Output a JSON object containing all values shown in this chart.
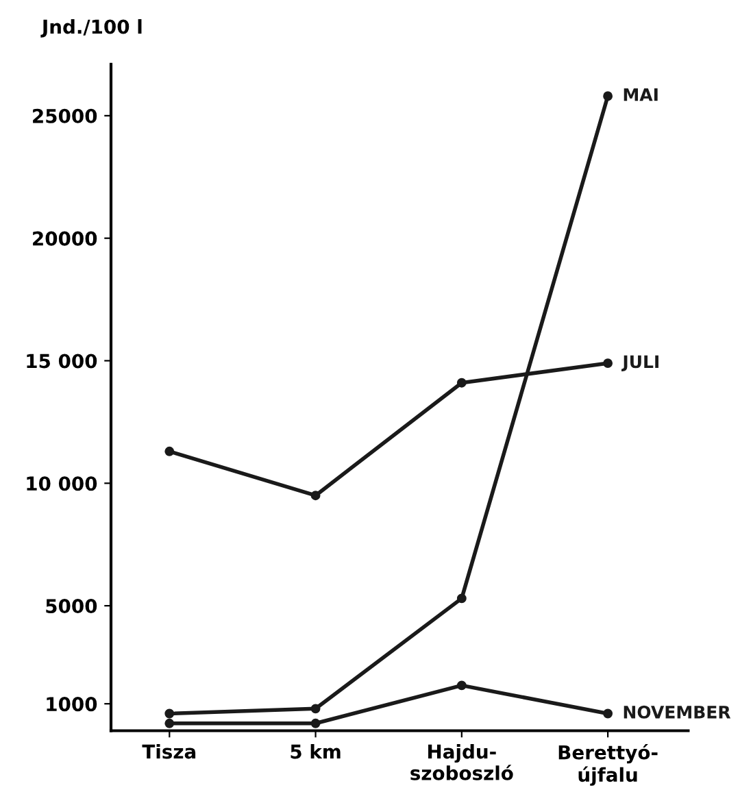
{
  "chart_data": {
    "type": "line",
    "ylabel": "Jnd./100 l",
    "categories": [
      "Tisza",
      "5 km",
      "Hajdu-\nszoboszló",
      "Berettyó-\nújfalu"
    ],
    "series": [
      {
        "name": "MAI",
        "color": "#1a1a1a",
        "values": [
          600,
          800,
          5300,
          25800
        ]
      },
      {
        "name": "JULI",
        "color": "#1a1a1a",
        "values": [
          11300,
          9500,
          14100,
          14900
        ]
      },
      {
        "name": "NOVEMBER",
        "color": "#1a1a1a",
        "values": [
          200,
          200,
          1750,
          600
        ]
      }
    ],
    "ylim": [
      -100,
      27100
    ],
    "yticks": [
      1000,
      5000,
      {
        "value": 10000,
        "label": "10 000"
      },
      {
        "value": 15000,
        "label": "15 000"
      },
      20000,
      25000
    ],
    "grid": false,
    "legend": false,
    "marker": "circle",
    "line_style": "solid"
  }
}
